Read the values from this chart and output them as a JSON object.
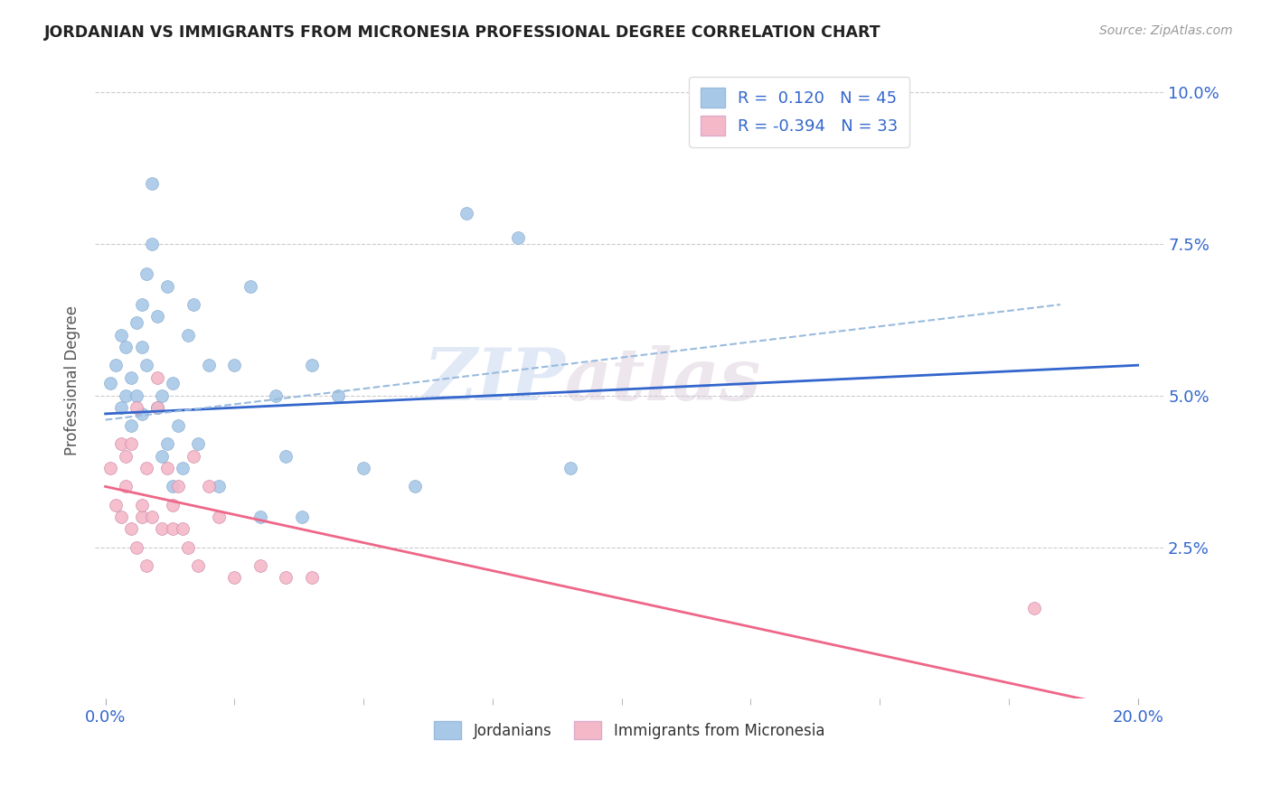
{
  "title": "JORDANIAN VS IMMIGRANTS FROM MICRONESIA PROFESSIONAL DEGREE CORRELATION CHART",
  "source": "Source: ZipAtlas.com",
  "xlabel_ticks": [
    "0.0%",
    "20.0%"
  ],
  "xlabel_tick_vals": [
    0.0,
    0.2
  ],
  "ylabel": "Professional Degree",
  "ylabel_ticks": [
    "2.5%",
    "5.0%",
    "7.5%",
    "10.0%"
  ],
  "ylabel_tick_vals": [
    0.025,
    0.05,
    0.075,
    0.1
  ],
  "xlim": [
    -0.002,
    0.205
  ],
  "ylim": [
    0.0,
    0.105
  ],
  "blue_R": "0.120",
  "blue_N": "45",
  "pink_R": "-0.394",
  "pink_N": "33",
  "blue_color": "#A8C8E8",
  "pink_color": "#F4B8C8",
  "blue_line_color": "#3366CC",
  "pink_line_color": "#EE6688",
  "dashed_line_color": "#99BBDD",
  "watermark_text": "ZIP",
  "watermark_text2": "atlas",
  "legend_label_blue": "Jordanians",
  "legend_label_pink": "Immigrants from Micronesia",
  "blue_scatter_x": [
    0.001,
    0.002,
    0.003,
    0.003,
    0.004,
    0.004,
    0.005,
    0.005,
    0.006,
    0.006,
    0.007,
    0.007,
    0.007,
    0.008,
    0.008,
    0.009,
    0.009,
    0.01,
    0.01,
    0.011,
    0.011,
    0.012,
    0.012,
    0.013,
    0.013,
    0.014,
    0.015,
    0.016,
    0.017,
    0.018,
    0.02,
    0.022,
    0.025,
    0.028,
    0.03,
    0.033,
    0.035,
    0.038,
    0.04,
    0.045,
    0.05,
    0.06,
    0.07,
    0.08,
    0.09
  ],
  "blue_scatter_y": [
    0.052,
    0.055,
    0.06,
    0.048,
    0.058,
    0.05,
    0.053,
    0.045,
    0.062,
    0.05,
    0.065,
    0.058,
    0.047,
    0.07,
    0.055,
    0.085,
    0.075,
    0.048,
    0.063,
    0.05,
    0.04,
    0.068,
    0.042,
    0.052,
    0.035,
    0.045,
    0.038,
    0.06,
    0.065,
    0.042,
    0.055,
    0.035,
    0.055,
    0.068,
    0.03,
    0.05,
    0.04,
    0.03,
    0.055,
    0.05,
    0.038,
    0.035,
    0.08,
    0.076,
    0.038
  ],
  "pink_scatter_x": [
    0.001,
    0.002,
    0.003,
    0.003,
    0.004,
    0.004,
    0.005,
    0.005,
    0.006,
    0.006,
    0.007,
    0.007,
    0.008,
    0.008,
    0.009,
    0.01,
    0.01,
    0.011,
    0.012,
    0.013,
    0.013,
    0.014,
    0.015,
    0.016,
    0.017,
    0.018,
    0.02,
    0.022,
    0.025,
    0.03,
    0.035,
    0.04,
    0.18
  ],
  "pink_scatter_y": [
    0.038,
    0.032,
    0.042,
    0.03,
    0.04,
    0.035,
    0.042,
    0.028,
    0.048,
    0.025,
    0.03,
    0.032,
    0.038,
    0.022,
    0.03,
    0.053,
    0.048,
    0.028,
    0.038,
    0.032,
    0.028,
    0.035,
    0.028,
    0.025,
    0.04,
    0.022,
    0.035,
    0.03,
    0.02,
    0.022,
    0.02,
    0.02,
    0.015
  ],
  "blue_trend_x": [
    0.0,
    0.2
  ],
  "blue_trend_y": [
    0.047,
    0.055
  ],
  "pink_trend_x": [
    0.0,
    0.2
  ],
  "pink_trend_y": [
    0.035,
    -0.002
  ],
  "dashed_trend_x": [
    0.0,
    0.185
  ],
  "dashed_trend_y": [
    0.046,
    0.065
  ],
  "grid_color": "#CCCCCC",
  "background_color": "#FFFFFF",
  "xtick_minor_vals": [
    0.025,
    0.05,
    0.075,
    0.1,
    0.125,
    0.15,
    0.175
  ]
}
